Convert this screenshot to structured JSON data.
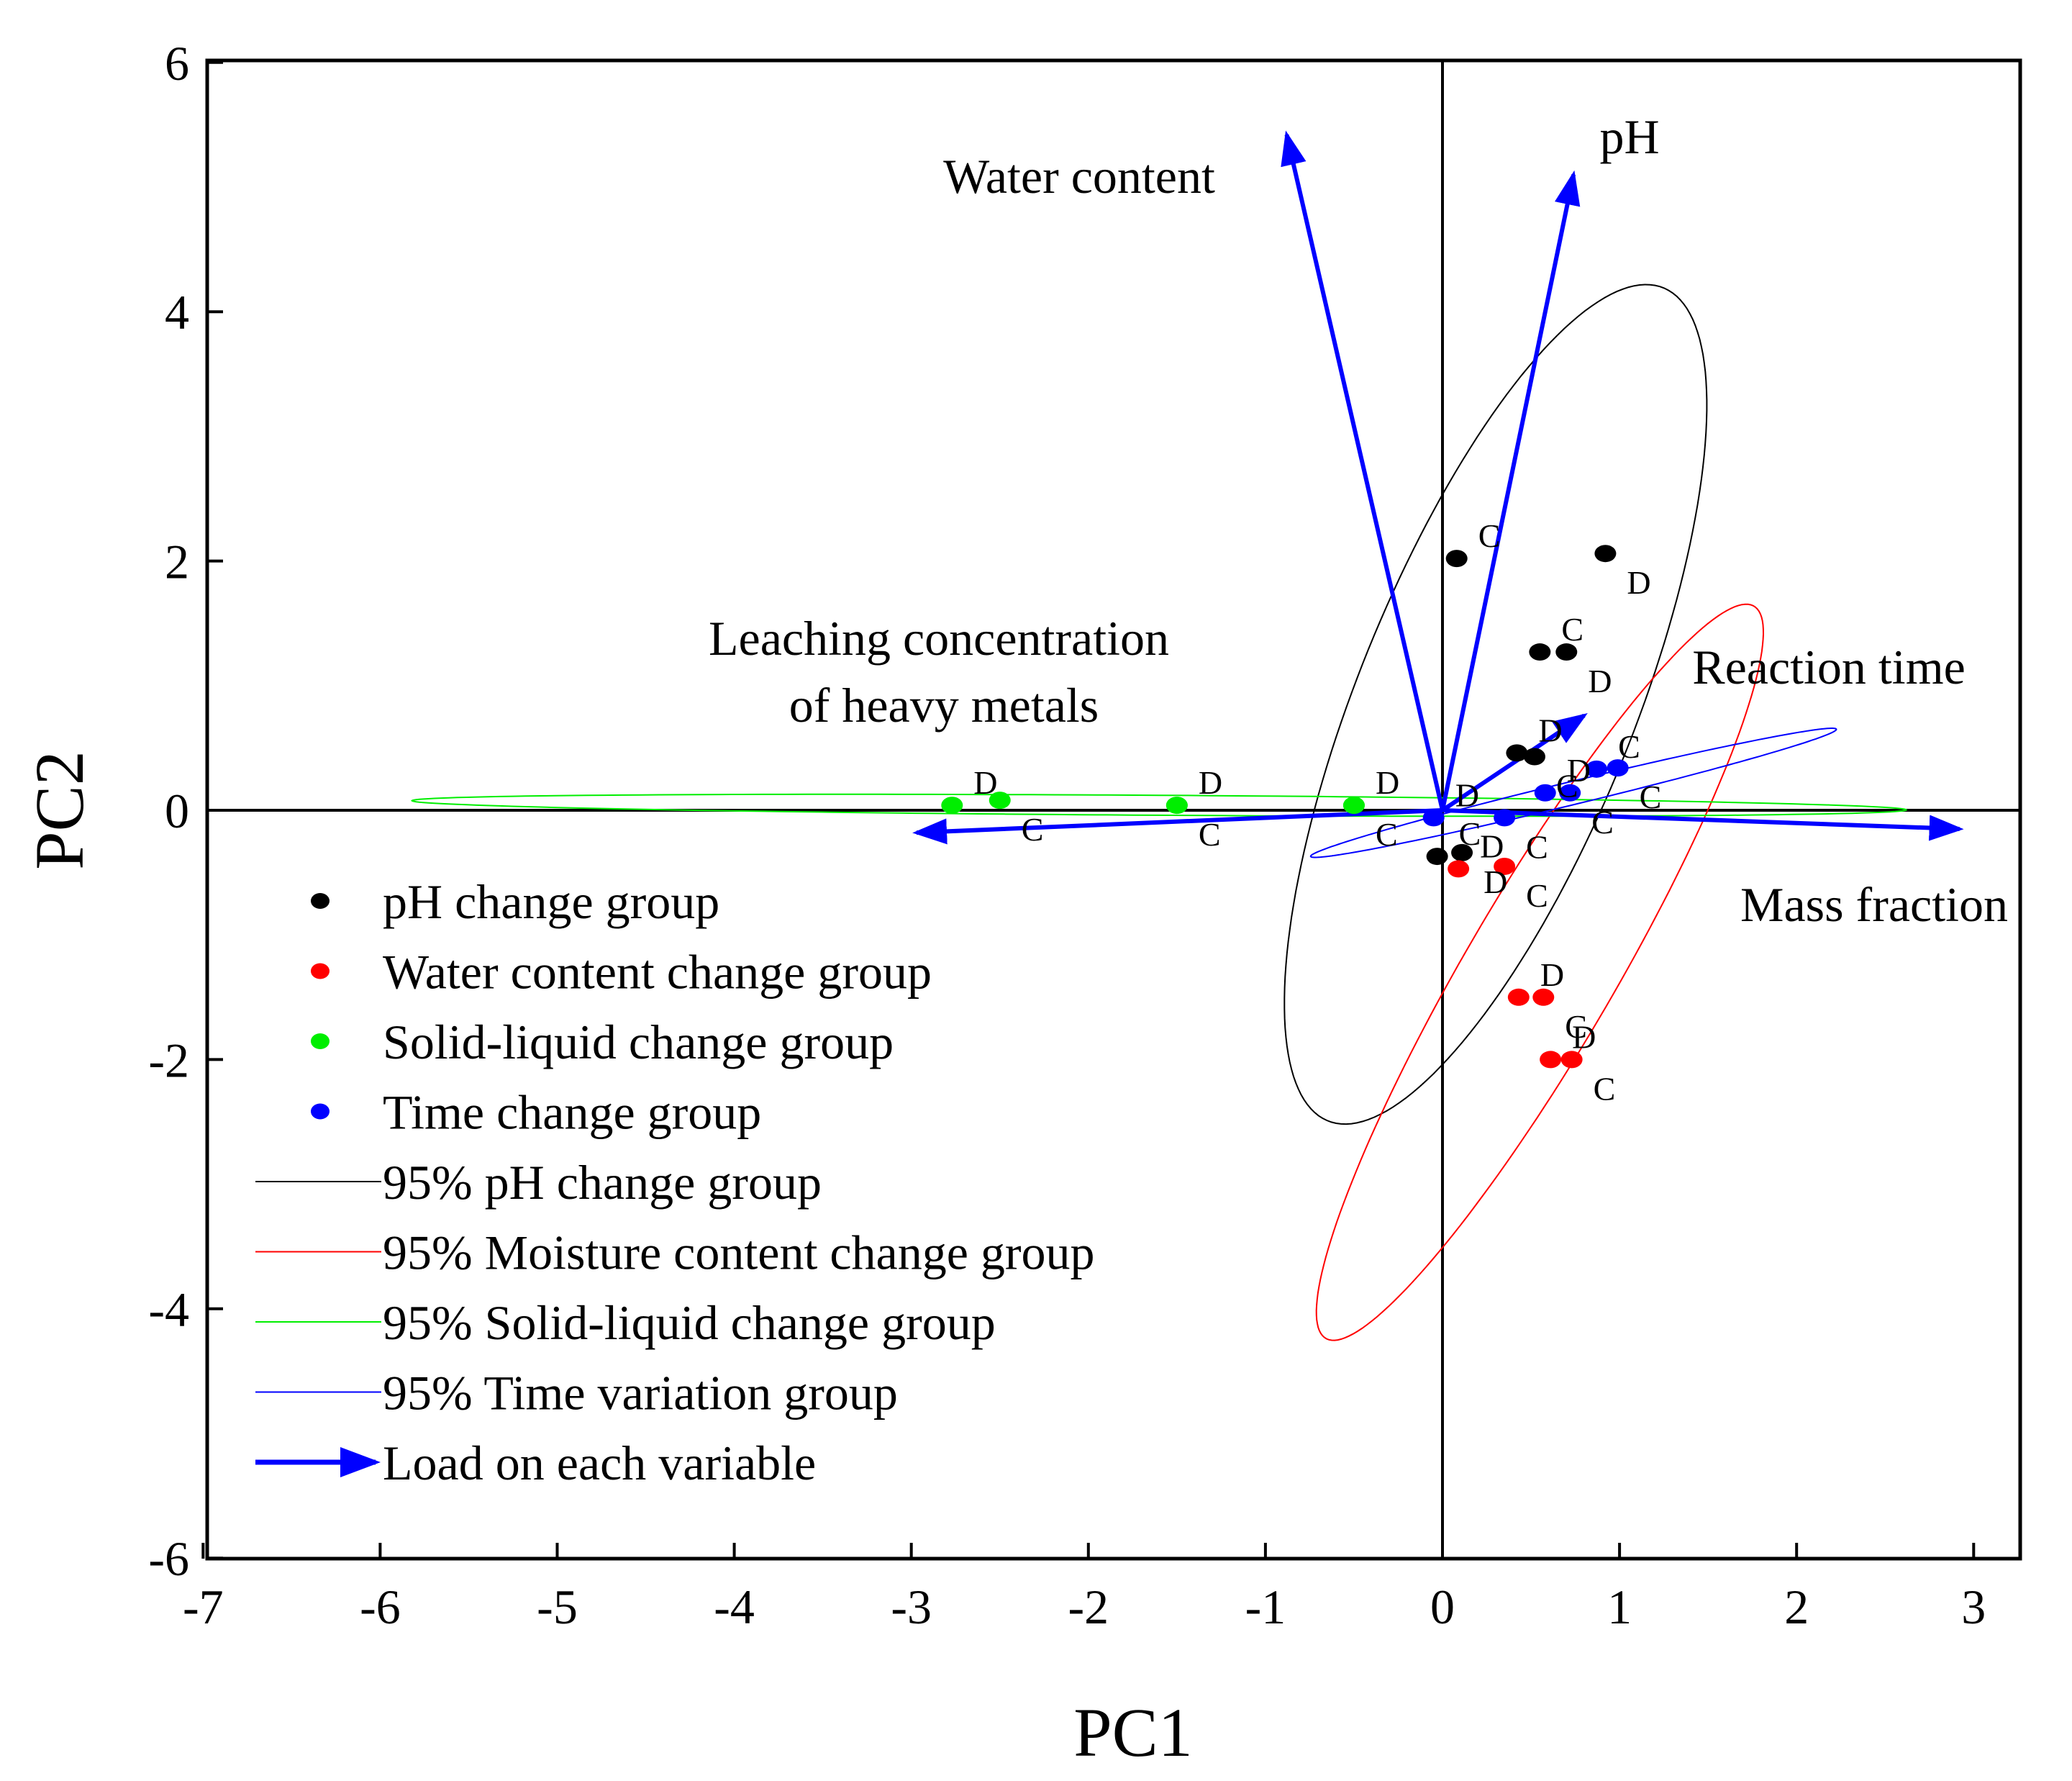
{
  "chart_data": {
    "type": "scatter",
    "title": "",
    "xlabel": "PC1",
    "ylabel": "PC2",
    "xlim": [
      -7,
      3.5
    ],
    "ylim": [
      -6,
      6
    ],
    "xticks": [
      "-7",
      "-6",
      "-5",
      "-4",
      "-3",
      "-2",
      "-1",
      "0",
      "1",
      "2",
      "3"
    ],
    "yticks": [
      "6",
      "4",
      "2",
      "0",
      "-2",
      "-4",
      "-6"
    ],
    "series": [
      {
        "name": "pH change group",
        "color": "#000000",
        "points": [
          {
            "x": 0.08,
            "y": 2.02,
            "label": "C"
          },
          {
            "x": 0.92,
            "y": 2.06,
            "label": "D"
          },
          {
            "x": 0.55,
            "y": 1.27,
            "label": "C"
          },
          {
            "x": 0.7,
            "y": 1.27,
            "label": "D"
          },
          {
            "x": 0.42,
            "y": 0.46,
            "label": "D"
          },
          {
            "x": 0.52,
            "y": 0.43,
            "label": "C"
          },
          {
            "x": -0.03,
            "y": -0.37,
            "label": "C"
          },
          {
            "x": 0.11,
            "y": -0.34,
            "label": "D"
          }
        ]
      },
      {
        "name": "Water content change group",
        "color": "#ff0000",
        "points": [
          {
            "x": 0.09,
            "y": -0.47,
            "label": "D"
          },
          {
            "x": 0.35,
            "y": -0.45,
            "label": "C"
          },
          {
            "x": 0.43,
            "y": -1.5,
            "label": "D"
          },
          {
            "x": 0.57,
            "y": -1.5,
            "label": "C"
          },
          {
            "x": 0.61,
            "y": -2.0,
            "label": "D"
          },
          {
            "x": 0.73,
            "y": -2.0,
            "label": "C"
          }
        ]
      },
      {
        "name": "Solid-liquid change group",
        "color": "#00ee00",
        "points": [
          {
            "x": -2.77,
            "y": 0.04,
            "label": "D"
          },
          {
            "x": -2.5,
            "y": 0.08,
            "label": "C"
          },
          {
            "x": -1.5,
            "y": 0.04,
            "label": "D"
          },
          {
            "x": -1.5,
            "y": 0.04,
            "label": "C"
          },
          {
            "x": -0.5,
            "y": 0.04,
            "label": "D"
          },
          {
            "x": -0.5,
            "y": 0.04,
            "label": "C"
          }
        ]
      },
      {
        "name": "Time change group",
        "color": "#0000ff",
        "points": [
          {
            "x": -0.05,
            "y": -0.06,
            "label": "D"
          },
          {
            "x": 0.35,
            "y": -0.06,
            "label": "C"
          },
          {
            "x": 0.58,
            "y": 0.14,
            "label": "D"
          },
          {
            "x": 0.72,
            "y": 0.14,
            "label": "C"
          },
          {
            "x": 0.87,
            "y": 0.33,
            "label": "C"
          },
          {
            "x": 0.99,
            "y": 0.34,
            "label": "C"
          }
        ]
      }
    ],
    "ellipses": [
      {
        "name": "95% pH change group",
        "color": "#000000",
        "cx": 0.3,
        "cy": 0.85,
        "rx": 0.81,
        "ry": 3.48,
        "angle": 15
      },
      {
        "name": "95% Moisture content change group",
        "color": "#ff0000",
        "cx": 0.55,
        "cy": -1.3,
        "rx": 0.45,
        "ry": 3.18,
        "angle": 22
      },
      {
        "name": "95% Solid-liquid change group",
        "color": "#00ee00",
        "cx": -1.6,
        "cy": 0.04,
        "rx": 4.22,
        "ry": 0.08,
        "angle": 0.5
      },
      {
        "name": "95% Time variation group",
        "color": "#0000ff",
        "cx": 0.74,
        "cy": 0.14,
        "rx": 1.57,
        "ry": 0.09,
        "angle": -19
      }
    ],
    "loadings": [
      {
        "name": "Water content",
        "x": -0.88,
        "y": 5.42
      },
      {
        "name": "pH",
        "x": 0.74,
        "y": 5.1
      },
      {
        "name": "Reaction time",
        "x": 0.8,
        "y": 0.76
      },
      {
        "name": "Mass fraction",
        "x": 2.92,
        "y": -0.15
      },
      {
        "name": "Leaching concentration of heavy metals",
        "x": -2.97,
        "y": -0.18
      }
    ],
    "legend": {
      "placement": "bottom-left",
      "entries": [
        {
          "label": "pH change group",
          "kind": "dot",
          "color": "#000000"
        },
        {
          "label": "Water content change group",
          "kind": "dot",
          "color": "#ff0000"
        },
        {
          "label": "Solid-liquid change group",
          "kind": "dot",
          "color": "#00ee00"
        },
        {
          "label": "Time change group",
          "kind": "dot",
          "color": "#0000ff"
        },
        {
          "label": "95% pH change group",
          "kind": "line",
          "color": "#000000"
        },
        {
          "label": "95% Moisture content change group",
          "kind": "line",
          "color": "#ff0000"
        },
        {
          "label": "95% Solid-liquid change group",
          "kind": "line",
          "color": "#00ee00"
        },
        {
          "label": "95% Time variation group",
          "kind": "line",
          "color": "#0000ff"
        },
        {
          "label": "Load on each variable",
          "kind": "arrow",
          "color": "#0000ff"
        }
      ]
    },
    "variable_labels": {
      "water_content": "Water content",
      "ph": "pH",
      "reaction_time": "Reaction time",
      "mass_fraction": "Mass fraction",
      "leaching_line1": "Leaching concentration",
      "leaching_line2": "of heavy metals"
    }
  }
}
